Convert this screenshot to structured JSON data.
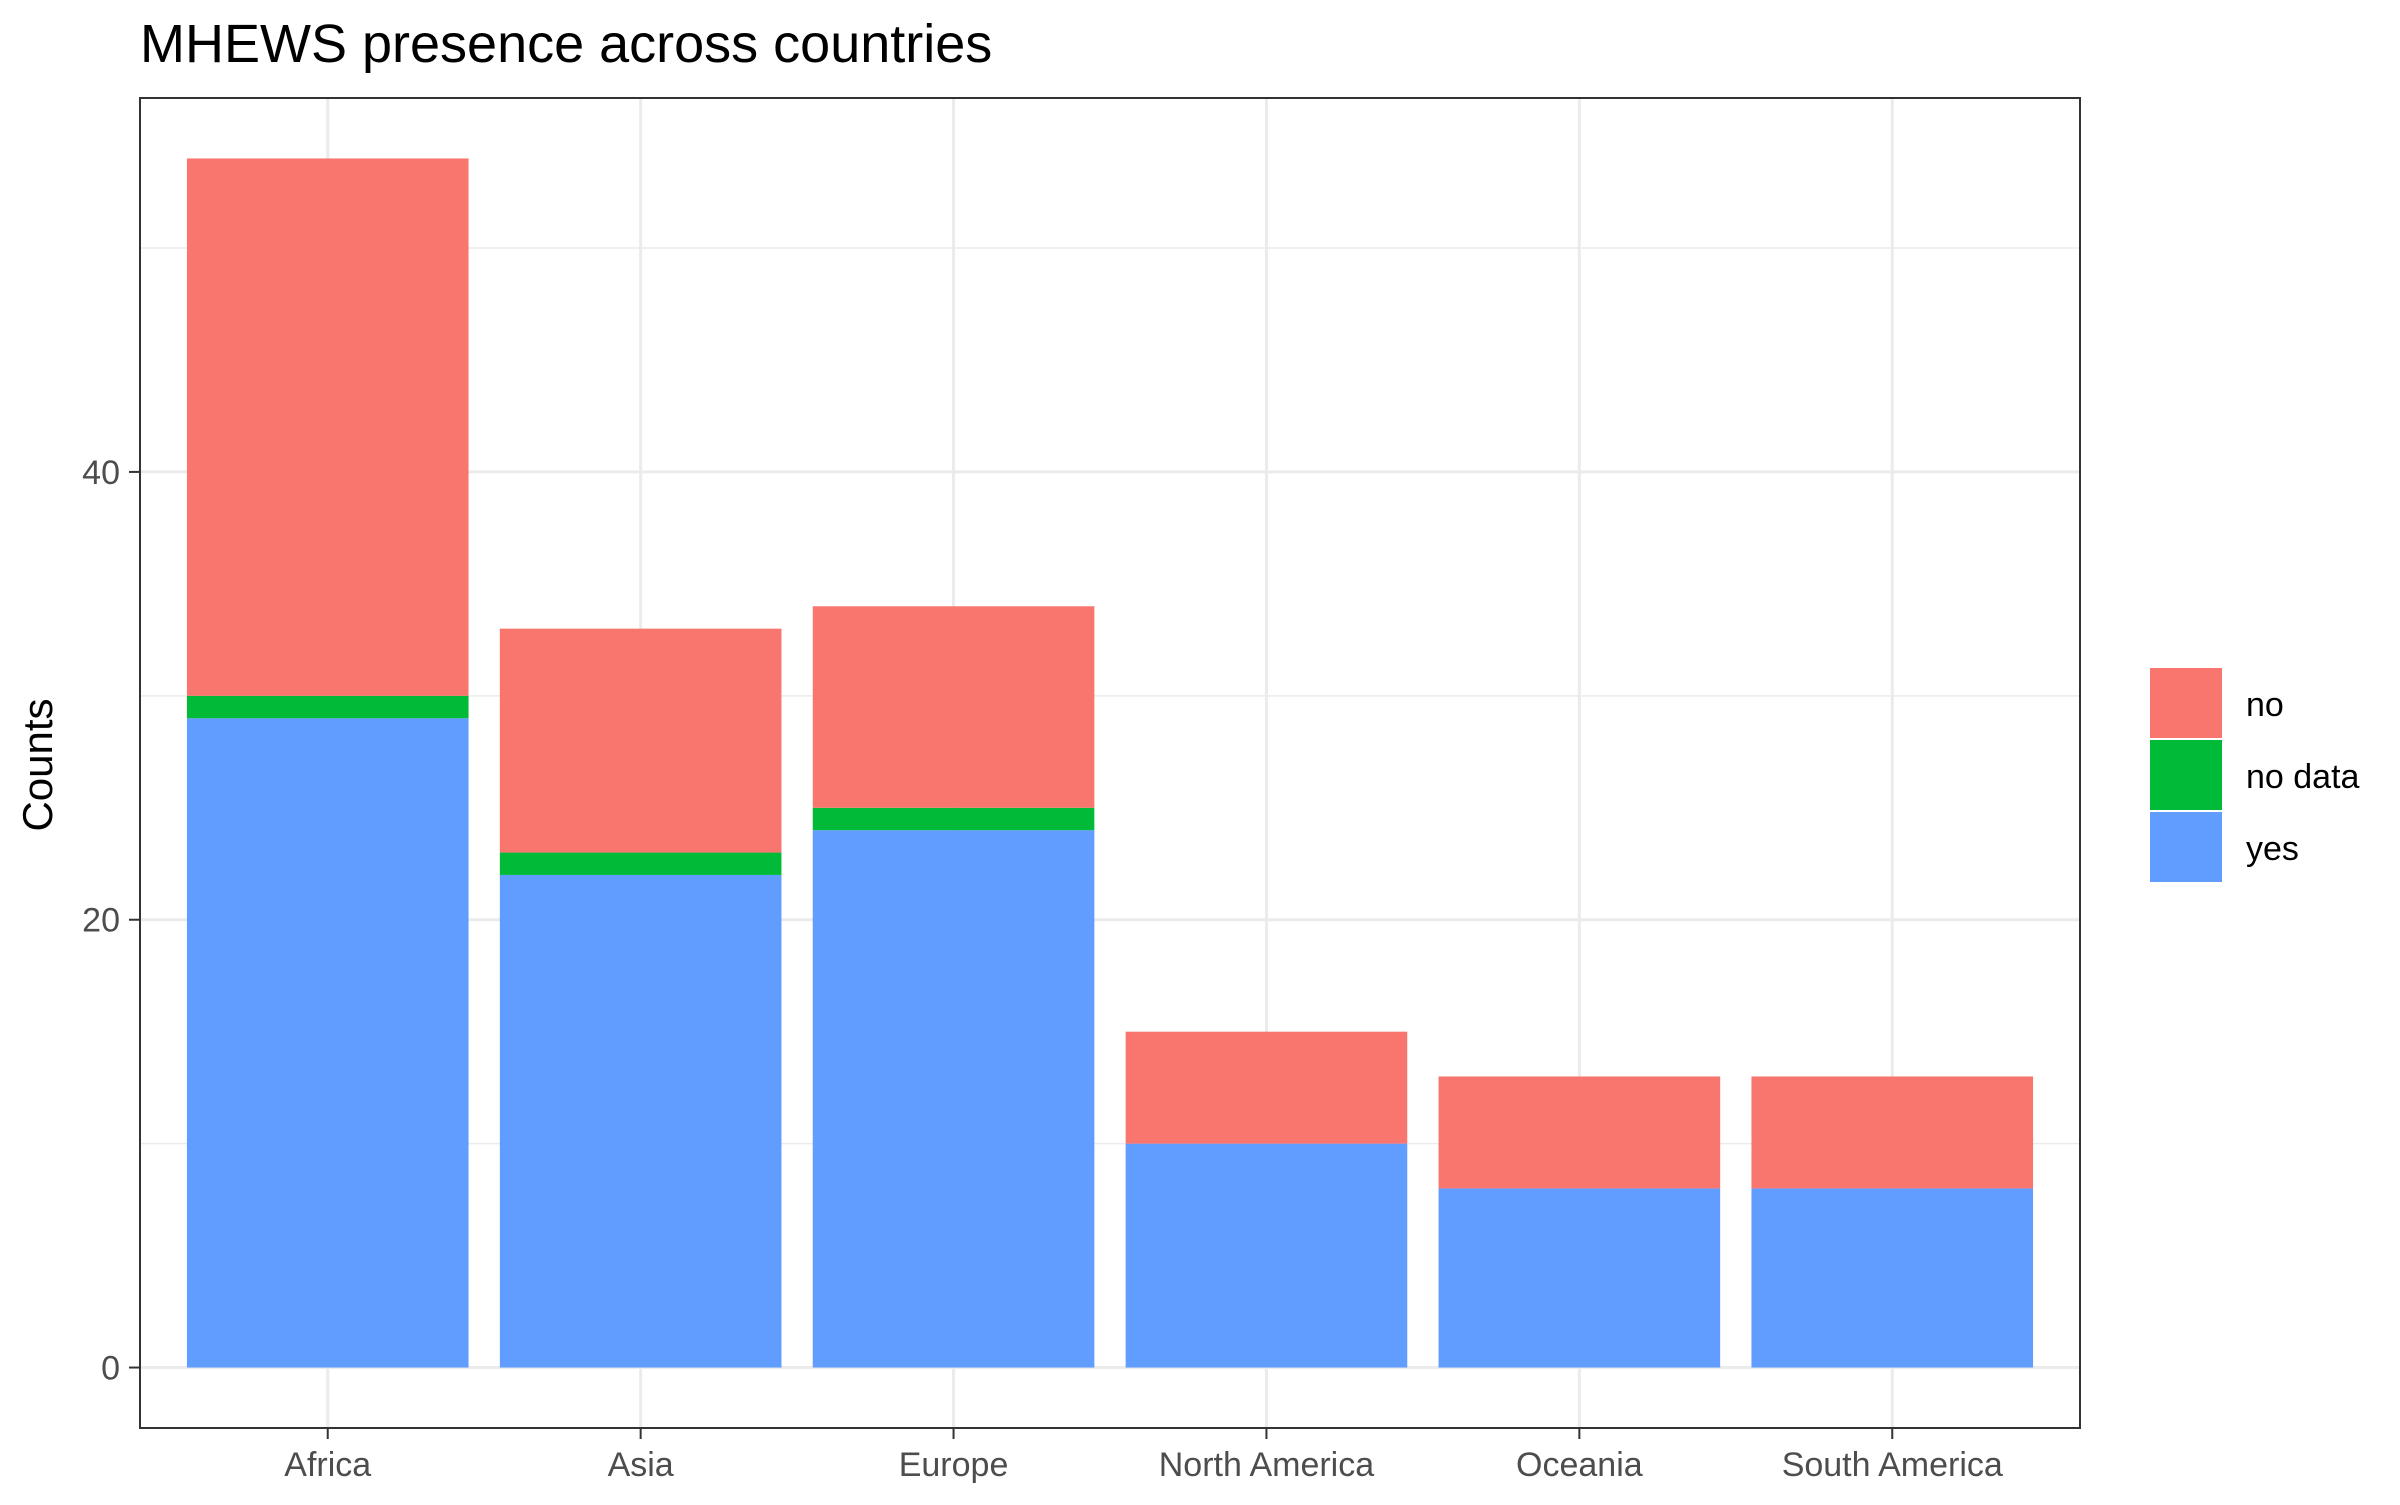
{
  "chart_data": {
    "type": "bar",
    "stacked": true,
    "title": "MHEWS presence across countries",
    "xlabel": "",
    "ylabel": "Counts",
    "categories": [
      "Africa",
      "Asia",
      "Europe",
      "North America",
      "Oceania",
      "South America"
    ],
    "series": [
      {
        "name": "yes",
        "color": "#619CFF",
        "values": [
          29,
          22,
          24,
          10,
          8,
          8
        ]
      },
      {
        "name": "no data",
        "color": "#00BA38",
        "values": [
          1,
          1,
          1,
          0,
          0,
          0
        ]
      },
      {
        "name": "no",
        "color": "#F8766D",
        "values": [
          24,
          10,
          9,
          5,
          5,
          5
        ]
      }
    ],
    "legend_order": [
      "no",
      "no data",
      "yes"
    ],
    "ylim": [
      -2.7,
      56.7
    ],
    "yticks": [
      0,
      20,
      40
    ],
    "ytick_labels": [
      "0",
      "20",
      "40"
    ],
    "minor_gridlines_y": [
      10,
      30,
      50
    ],
    "grid": true,
    "legend_position": "right",
    "theme": "bw"
  }
}
